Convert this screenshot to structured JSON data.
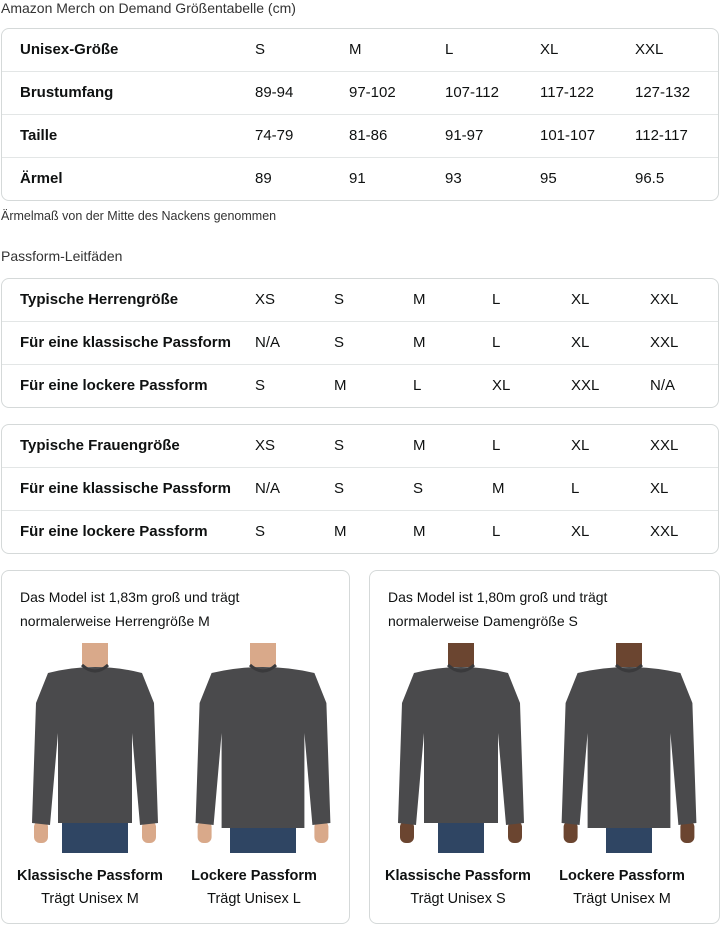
{
  "title": "Amazon Merch on Demand Größentabelle (cm)",
  "size_table": {
    "rows": [
      [
        "Unisex-Größe",
        "S",
        "M",
        "L",
        "XL",
        "XXL"
      ],
      [
        "Brustumfang",
        "89-94",
        "97-102",
        "107-112",
        "117-122",
        "127-132"
      ],
      [
        "Taille",
        "74-79",
        "81-86",
        "91-97",
        "101-107",
        "112-117"
      ],
      [
        "Ärmel",
        "89",
        "91",
        "93",
        "95",
        "96.5"
      ]
    ]
  },
  "sleeve_note": "Ärmelmaß von der Mitte des Nackens genommen",
  "fit_heading": "Passform-Leitfäden",
  "men_table": {
    "rows": [
      [
        "Typische Herrengröße",
        "XS",
        "S",
        "M",
        "L",
        "XL",
        "XXL"
      ],
      [
        "Für eine klassische Passform",
        "N/A",
        "S",
        "M",
        "L",
        "XL",
        "XXL"
      ],
      [
        "Für eine lockere Passform",
        "S",
        "M",
        "L",
        "XL",
        "XXL",
        "N/A"
      ]
    ]
  },
  "women_table": {
    "rows": [
      [
        "Typische Frauengröße",
        "XS",
        "S",
        "M",
        "L",
        "XL",
        "XXL"
      ],
      [
        "Für eine klassische Passform",
        "N/A",
        "S",
        "S",
        "M",
        "L",
        "XL"
      ],
      [
        "Für eine lockere Passform",
        "S",
        "M",
        "M",
        "L",
        "XL",
        "XXL"
      ]
    ]
  },
  "cards": [
    {
      "text": "Das Model ist 1,83m groß und trägt normalerweise Herrengröße M",
      "figures": [
        {
          "fit": "Klassische Passform",
          "size": "Trägt Unisex M"
        },
        {
          "fit": "Lockere Passform",
          "size": "Trägt Unisex L"
        }
      ]
    },
    {
      "text": "Das Model ist 1,80m groß und trägt normalerweise Damengröße S",
      "figures": [
        {
          "fit": "Klassische Passform",
          "size": "Trägt Unisex S"
        },
        {
          "fit": "Lockere Passform",
          "size": "Trägt Unisex M"
        }
      ]
    }
  ],
  "colors": {
    "sweater": "#4a4a4c",
    "jeans": "#2f4563",
    "skin_m": "#d9a98a",
    "skin_f": "#6b4530",
    "border": "#d5d9d9"
  }
}
